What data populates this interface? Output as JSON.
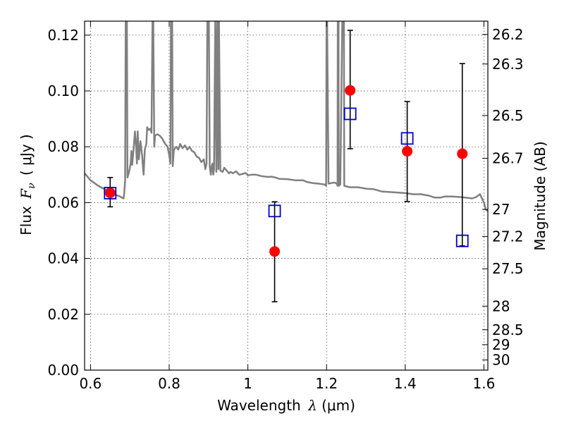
{
  "chart_data": {
    "type": "scatter",
    "xlabel": {
      "prefix": "Wavelength ",
      "lambda": "λ",
      "unit": " (μm)"
    },
    "ylabel": {
      "prefix": "Flux ",
      "symbol": "F",
      "sub": "ν",
      "unit": " ( μJy )"
    },
    "y2label": "Magnitude (AB)",
    "xlim": [
      0.585,
      1.61
    ],
    "ylim": [
      0.0,
      0.125
    ],
    "x_ticks": [
      {
        "v": 0.6,
        "label": "0.6"
      },
      {
        "v": 0.8,
        "label": "0.8"
      },
      {
        "v": 1.0,
        "label": "1"
      },
      {
        "v": 1.2,
        "label": "1.2"
      },
      {
        "v": 1.4,
        "label": "1.4"
      },
      {
        "v": 1.6,
        "label": "1.6"
      }
    ],
    "y_ticks": [
      {
        "v": 0.0,
        "label": "0.00"
      },
      {
        "v": 0.02,
        "label": "0.02"
      },
      {
        "v": 0.04,
        "label": "0.04"
      },
      {
        "v": 0.06,
        "label": "0.06"
      },
      {
        "v": 0.08,
        "label": "0.08"
      },
      {
        "v": 0.1,
        "label": "0.10"
      },
      {
        "v": 0.12,
        "label": "0.12"
      }
    ],
    "mag_ticks": [
      "26.2",
      "26.3",
      "26.5",
      "26.7",
      "27",
      "27.2",
      "27.5",
      "28",
      "28.5",
      "29",
      "30"
    ],
    "grid": true,
    "observed": {
      "color": "#ff0000",
      "points": [
        {
          "x": 0.65,
          "y": 0.0635,
          "yerr_low": 0.0585,
          "yerr_high": 0.069
        },
        {
          "x": 1.068,
          "y": 0.0425,
          "yerr_low": 0.0245,
          "yerr_high": 0.0603
        },
        {
          "x": 1.26,
          "y": 0.1002,
          "yerr_low": 0.0793,
          "yerr_high": 0.1217
        },
        {
          "x": 1.405,
          "y": 0.0784,
          "yerr_low": 0.0604,
          "yerr_high": 0.0962
        },
        {
          "x": 1.545,
          "y": 0.0775,
          "yerr_low": 0.0445,
          "yerr_high": 0.1098
        }
      ]
    },
    "model_photometry": {
      "color": "#0000cc",
      "points": [
        {
          "x": 0.65,
          "y": 0.0634
        },
        {
          "x": 1.068,
          "y": 0.057
        },
        {
          "x": 1.26,
          "y": 0.0918
        },
        {
          "x": 1.405,
          "y": 0.083
        },
        {
          "x": 1.545,
          "y": 0.0463
        }
      ]
    },
    "sed_spectrum": {
      "color": "#808080",
      "points": [
        [
          0.585,
          0.0705
        ],
        [
          0.6,
          0.068
        ],
        [
          0.62,
          0.066
        ],
        [
          0.64,
          0.0645
        ],
        [
          0.66,
          0.063
        ],
        [
          0.675,
          0.0622
        ],
        [
          0.684,
          0.0615
        ],
        [
          0.6855,
          0.063
        ],
        [
          0.688,
          0.068
        ],
        [
          0.6895,
          0.125
        ],
        [
          0.6925,
          0.125
        ],
        [
          0.694,
          0.069
        ],
        [
          0.698,
          0.071
        ],
        [
          0.702,
          0.074
        ],
        [
          0.704,
          0.0785
        ],
        [
          0.706,
          0.0735
        ],
        [
          0.71,
          0.08
        ],
        [
          0.713,
          0.0855
        ],
        [
          0.716,
          0.08
        ],
        [
          0.718,
          0.074
        ],
        [
          0.72,
          0.0855
        ],
        [
          0.723,
          0.0755
        ],
        [
          0.727,
          0.082
        ],
        [
          0.731,
          0.077
        ],
        [
          0.735,
          0.07
        ],
        [
          0.738,
          0.079
        ],
        [
          0.742,
          0.081
        ],
        [
          0.744,
          0.087
        ],
        [
          0.748,
          0.086
        ],
        [
          0.752,
          0.0865
        ],
        [
          0.755,
          0.085
        ],
        [
          0.7575,
          0.125
        ],
        [
          0.7595,
          0.125
        ],
        [
          0.762,
          0.08
        ],
        [
          0.764,
          0.084
        ],
        [
          0.77,
          0.0845
        ],
        [
          0.776,
          0.084
        ],
        [
          0.782,
          0.083
        ],
        [
          0.79,
          0.081
        ],
        [
          0.796,
          0.08
        ],
        [
          0.8,
          0.077
        ],
        [
          0.803,
          0.074
        ],
        [
          0.8045,
          0.125
        ],
        [
          0.8075,
          0.125
        ],
        [
          0.809,
          0.073
        ],
        [
          0.812,
          0.079
        ],
        [
          0.818,
          0.08
        ],
        [
          0.823,
          0.079
        ],
        [
          0.828,
          0.081
        ],
        [
          0.834,
          0.0795
        ],
        [
          0.84,
          0.0805
        ],
        [
          0.846,
          0.079
        ],
        [
          0.852,
          0.08
        ],
        [
          0.858,
          0.0785
        ],
        [
          0.864,
          0.078
        ],
        [
          0.87,
          0.0765
        ],
        [
          0.876,
          0.076
        ],
        [
          0.882,
          0.0745
        ],
        [
          0.888,
          0.0755
        ],
        [
          0.892,
          0.072
        ],
        [
          0.895,
          0.074
        ],
        [
          0.897,
          0.125
        ],
        [
          0.901,
          0.125
        ],
        [
          0.903,
          0.073
        ],
        [
          0.906,
          0.07
        ],
        [
          0.908,
          0.073
        ],
        [
          0.91,
          0.074
        ],
        [
          0.912,
          0.07
        ],
        [
          0.914,
          0.072
        ],
        [
          0.917,
          0.125
        ],
        [
          0.92,
          0.071
        ],
        [
          0.922,
          0.125
        ],
        [
          0.925,
          0.072
        ],
        [
          0.9265,
          0.125
        ],
        [
          0.93,
          0.0715
        ],
        [
          0.936,
          0.071
        ],
        [
          0.94,
          0.0725
        ],
        [
          0.946,
          0.0715
        ],
        [
          0.952,
          0.0705
        ],
        [
          0.956,
          0.071
        ],
        [
          0.962,
          0.0705
        ],
        [
          0.97,
          0.0712
        ],
        [
          0.978,
          0.07
        ],
        [
          0.985,
          0.0702
        ],
        [
          0.994,
          0.0706
        ],
        [
          1.0,
          0.0698
        ],
        [
          1.01,
          0.07
        ],
        [
          1.02,
          0.07
        ],
        [
          1.035,
          0.0695
        ],
        [
          1.05,
          0.0692
        ],
        [
          1.06,
          0.0693
        ],
        [
          1.07,
          0.069
        ],
        [
          1.08,
          0.0685
        ],
        [
          1.1,
          0.0684
        ],
        [
          1.12,
          0.068
        ],
        [
          1.14,
          0.068
        ],
        [
          1.15,
          0.0674
        ],
        [
          1.165,
          0.067
        ],
        [
          1.18,
          0.0668
        ],
        [
          1.195,
          0.0665
        ],
        [
          1.199,
          0.066
        ],
        [
          1.2,
          0.125
        ],
        [
          1.2015,
          0.125
        ],
        [
          1.205,
          0.0668
        ],
        [
          1.212,
          0.067
        ],
        [
          1.22,
          0.0672
        ],
        [
          1.226,
          0.0668
        ],
        [
          1.228,
          0.066
        ],
        [
          1.2285,
          0.125
        ],
        [
          1.2305,
          0.125
        ],
        [
          1.231,
          0.066
        ],
        [
          1.235,
          0.0665
        ],
        [
          1.24,
          0.125
        ],
        [
          1.244,
          0.125
        ],
        [
          1.245,
          0.066
        ],
        [
          1.26,
          0.0655
        ],
        [
          1.28,
          0.0655
        ],
        [
          1.3,
          0.065
        ],
        [
          1.32,
          0.0648
        ],
        [
          1.34,
          0.064
        ],
        [
          1.36,
          0.0638
        ],
        [
          1.38,
          0.0636
        ],
        [
          1.4,
          0.0634
        ],
        [
          1.42,
          0.063
        ],
        [
          1.44,
          0.063
        ],
        [
          1.46,
          0.0625
        ],
        [
          1.475,
          0.0618
        ],
        [
          1.49,
          0.0618
        ],
        [
          1.5,
          0.0622
        ],
        [
          1.52,
          0.0622
        ],
        [
          1.54,
          0.062
        ],
        [
          1.56,
          0.0617
        ],
        [
          1.57,
          0.0615
        ],
        [
          1.58,
          0.062
        ],
        [
          1.59,
          0.063
        ],
        [
          1.6,
          0.06
        ],
        [
          1.605,
          0.0575
        ],
        [
          1.61,
          0.057
        ]
      ]
    }
  }
}
